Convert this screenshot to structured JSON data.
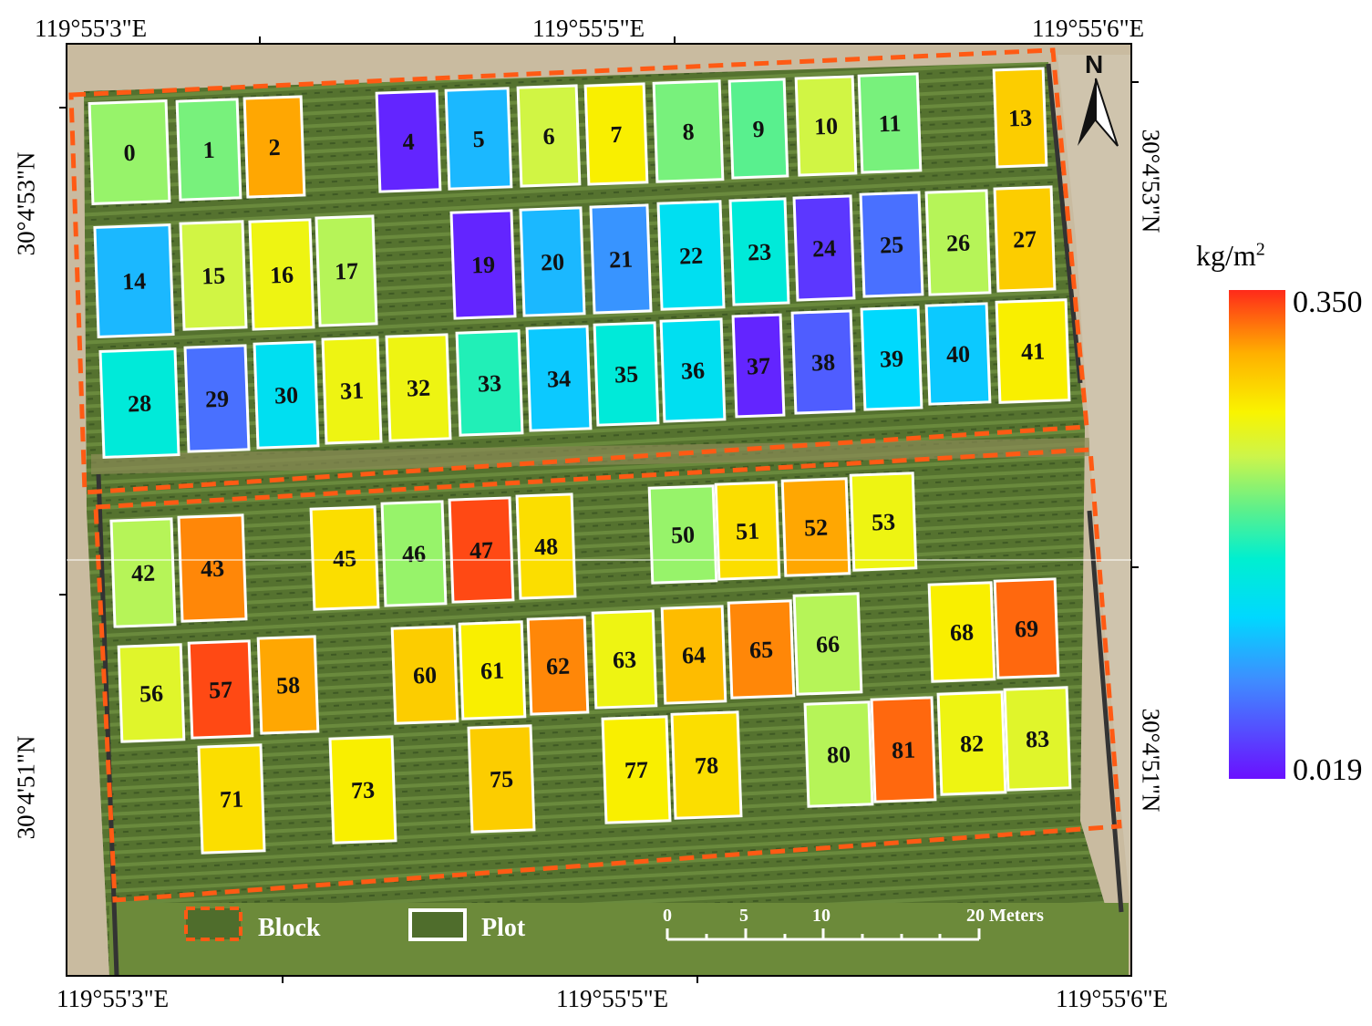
{
  "coords": {
    "top_left": "119°55'3\"E",
    "top_mid": "119°55'5\"E",
    "top_right": "119°55'6\"E",
    "bottom_left": "119°55'3\"E",
    "bottom_mid": "119°55'5\"E",
    "bottom_right": "119°55'6\"E",
    "left_top": "30°4'53\"N",
    "left_bottom": "30°4'51\"N",
    "right_top": "30°4'53\"N",
    "right_bottom": "30°4'51\"N"
  },
  "colorbar": {
    "unit": "kg/m",
    "unit_sup": "2",
    "max_label": "0.350",
    "min_label": "0.019",
    "max": 0.35,
    "min": 0.019
  },
  "legend": {
    "block_label": "Block",
    "plot_label": "Plot"
  },
  "scale_bar": {
    "ticks": [
      "0",
      "5",
      "10",
      "20 Meters"
    ]
  },
  "north_label": "N",
  "colors": {
    "block_border": "#ff5a14",
    "plot_border": "#ffffff",
    "field_green": "#4f6d2c"
  },
  "plots": [
    {
      "id": "0",
      "value": 0.22
    },
    {
      "id": "1",
      "value": 0.21
    },
    {
      "id": "2",
      "value": 0.31
    },
    {
      "id": "4",
      "value": 0.03
    },
    {
      "id": "5",
      "value": 0.11
    },
    {
      "id": "6",
      "value": 0.24
    },
    {
      "id": "7",
      "value": 0.27
    },
    {
      "id": "8",
      "value": 0.21
    },
    {
      "id": "9",
      "value": 0.2
    },
    {
      "id": "10",
      "value": 0.24
    },
    {
      "id": "11",
      "value": 0.21
    },
    {
      "id": "13",
      "value": 0.29
    },
    {
      "id": "14",
      "value": 0.11
    },
    {
      "id": "15",
      "value": 0.24
    },
    {
      "id": "16",
      "value": 0.26
    },
    {
      "id": "17",
      "value": 0.23
    },
    {
      "id": "19",
      "value": 0.03
    },
    {
      "id": "20",
      "value": 0.11
    },
    {
      "id": "21",
      "value": 0.09
    },
    {
      "id": "22",
      "value": 0.14
    },
    {
      "id": "23",
      "value": 0.16
    },
    {
      "id": "24",
      "value": 0.04
    },
    {
      "id": "25",
      "value": 0.07
    },
    {
      "id": "26",
      "value": 0.23
    },
    {
      "id": "27",
      "value": 0.29
    },
    {
      "id": "28",
      "value": 0.16
    },
    {
      "id": "29",
      "value": 0.07
    },
    {
      "id": "30",
      "value": 0.14
    },
    {
      "id": "31",
      "value": 0.26
    },
    {
      "id": "32",
      "value": 0.26
    },
    {
      "id": "33",
      "value": 0.18
    },
    {
      "id": "34",
      "value": 0.12
    },
    {
      "id": "35",
      "value": 0.16
    },
    {
      "id": "36",
      "value": 0.14
    },
    {
      "id": "37",
      "value": 0.03
    },
    {
      "id": "38",
      "value": 0.06
    },
    {
      "id": "39",
      "value": 0.13
    },
    {
      "id": "40",
      "value": 0.12
    },
    {
      "id": "41",
      "value": 0.27
    },
    {
      "id": "42",
      "value": 0.23
    },
    {
      "id": "43",
      "value": 0.32
    },
    {
      "id": "45",
      "value": 0.28
    },
    {
      "id": "46",
      "value": 0.22
    },
    {
      "id": "47",
      "value": 0.34
    },
    {
      "id": "48",
      "value": 0.28
    },
    {
      "id": "50",
      "value": 0.22
    },
    {
      "id": "51",
      "value": 0.28
    },
    {
      "id": "52",
      "value": 0.31
    },
    {
      "id": "53",
      "value": 0.26
    },
    {
      "id": "56",
      "value": 0.25
    },
    {
      "id": "57",
      "value": 0.34
    },
    {
      "id": "58",
      "value": 0.31
    },
    {
      "id": "60",
      "value": 0.29
    },
    {
      "id": "61",
      "value": 0.27
    },
    {
      "id": "62",
      "value": 0.32
    },
    {
      "id": "63",
      "value": 0.26
    },
    {
      "id": "64",
      "value": 0.3
    },
    {
      "id": "65",
      "value": 0.32
    },
    {
      "id": "66",
      "value": 0.23
    },
    {
      "id": "68",
      "value": 0.27
    },
    {
      "id": "69",
      "value": 0.33
    },
    {
      "id": "71",
      "value": 0.28
    },
    {
      "id": "73",
      "value": 0.27
    },
    {
      "id": "75",
      "value": 0.29
    },
    {
      "id": "77",
      "value": 0.27
    },
    {
      "id": "78",
      "value": 0.28
    },
    {
      "id": "80",
      "value": 0.23
    },
    {
      "id": "81",
      "value": 0.33
    },
    {
      "id": "82",
      "value": 0.26
    },
    {
      "id": "83",
      "value": 0.25
    }
  ]
}
